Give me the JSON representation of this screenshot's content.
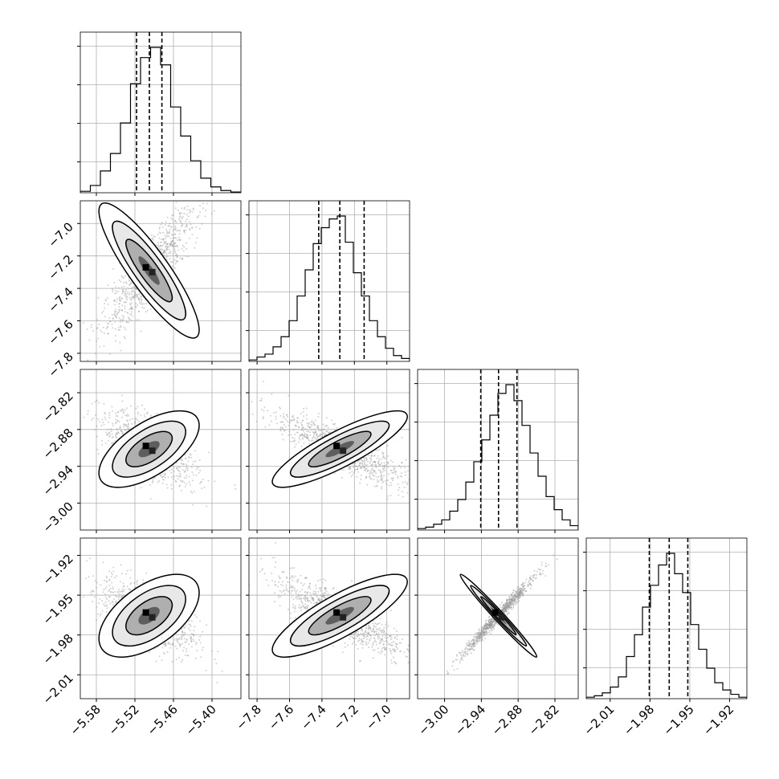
{
  "chart_data": {
    "type": "corner",
    "parameters": 4,
    "axis_labels": [
      "",
      "",
      "",
      ""
    ],
    "ticks": [
      [
        "−5.58",
        "−5.52",
        "−5.46",
        "−5.40"
      ],
      [
        "−7.8",
        "−7.6",
        "−7.4",
        "−7.2",
        "−7.0"
      ],
      [
        "−3.00",
        "−2.94",
        "−2.88",
        "−2.82"
      ],
      [
        "−2.01",
        "−1.98",
        "−1.95",
        "−1.92"
      ]
    ],
    "ranges": [
      [
        -5.605,
        -5.355
      ],
      [
        -7.85,
        -6.86
      ],
      [
        -3.044,
        -2.782
      ],
      [
        -2.028,
        -1.907
      ]
    ],
    "tick_values": [
      [
        -5.58,
        -5.52,
        -5.46,
        -5.4
      ],
      [
        -7.8,
        -7.6,
        -7.4,
        -7.2,
        -7.0
      ],
      [
        -3.0,
        -2.94,
        -2.88,
        -2.82
      ],
      [
        -2.01,
        -1.98,
        -1.95,
        -1.92
      ]
    ],
    "quantiles": [
      [
        -5.5175,
        -5.4975,
        -5.478
      ],
      [
        -7.42,
        -7.29,
        -7.14
      ],
      [
        -2.941,
        -2.912,
        -2.882
      ],
      [
        -1.9805,
        -1.9655,
        -1.9515
      ]
    ],
    "histograms": [
      [
        0.01,
        0.05,
        0.15,
        0.27,
        0.48,
        0.75,
        0.93,
        1.0,
        0.88,
        0.59,
        0.39,
        0.22,
        0.1,
        0.04,
        0.015,
        0.005
      ],
      [
        0.01,
        0.03,
        0.05,
        0.1,
        0.17,
        0.28,
        0.45,
        0.63,
        0.81,
        0.92,
        0.98,
        1.0,
        0.82,
        0.61,
        0.45,
        0.28,
        0.17,
        0.09,
        0.04,
        0.02
      ],
      [
        0.01,
        0.02,
        0.04,
        0.07,
        0.13,
        0.21,
        0.33,
        0.47,
        0.62,
        0.79,
        0.94,
        1.0,
        0.89,
        0.72,
        0.53,
        0.37,
        0.23,
        0.14,
        0.07,
        0.03
      ],
      [
        0.01,
        0.02,
        0.04,
        0.08,
        0.15,
        0.29,
        0.44,
        0.63,
        0.78,
        0.92,
        1.0,
        0.86,
        0.73,
        0.51,
        0.34,
        0.21,
        0.11,
        0.06,
        0.03,
        0.01
      ]
    ],
    "grid": true
  }
}
